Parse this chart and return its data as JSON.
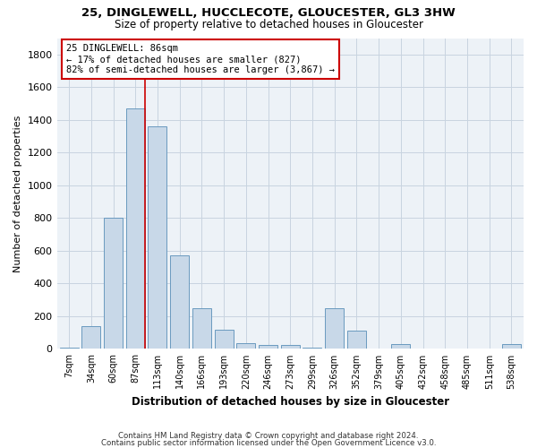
{
  "title1": "25, DINGLEWELL, HUCCLECOTE, GLOUCESTER, GL3 3HW",
  "title2": "Size of property relative to detached houses in Gloucester",
  "xlabel": "Distribution of detached houses by size in Gloucester",
  "ylabel": "Number of detached properties",
  "bar_labels": [
    "7sqm",
    "34sqm",
    "60sqm",
    "87sqm",
    "113sqm",
    "140sqm",
    "166sqm",
    "193sqm",
    "220sqm",
    "246sqm",
    "273sqm",
    "299sqm",
    "326sqm",
    "352sqm",
    "379sqm",
    "405sqm",
    "432sqm",
    "458sqm",
    "485sqm",
    "511sqm",
    "538sqm"
  ],
  "bar_values": [
    8,
    140,
    800,
    1470,
    1360,
    570,
    250,
    120,
    35,
    25,
    22,
    10,
    250,
    110,
    0,
    30,
    0,
    0,
    0,
    0,
    30
  ],
  "bar_color": "#c8d8e8",
  "bar_edgecolor": "#6a9abf",
  "annotation_text": "25 DINGLEWELL: 86sqm\n← 17% of detached houses are smaller (827)\n82% of semi-detached houses are larger (3,867) →",
  "annotation_box_color": "white",
  "annotation_box_edgecolor": "#cc0000",
  "vline_x": 3.45,
  "vline_color": "#cc0000",
  "ylim": [
    0,
    1900
  ],
  "yticks": [
    0,
    200,
    400,
    600,
    800,
    1000,
    1200,
    1400,
    1600,
    1800
  ],
  "grid_color": "#c8d4e0",
  "bg_color": "#edf2f7",
  "footer1": "Contains HM Land Registry data © Crown copyright and database right 2024.",
  "footer2": "Contains public sector information licensed under the Open Government Licence v3.0."
}
